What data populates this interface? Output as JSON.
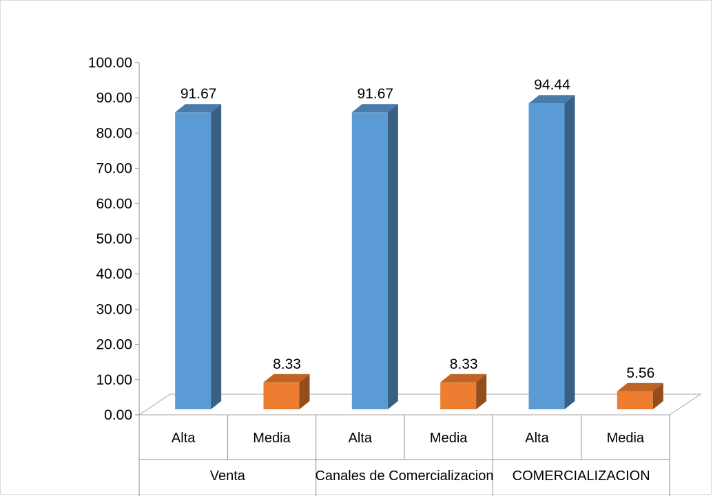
{
  "chart_data": {
    "type": "bar",
    "categories": [
      {
        "group": "Venta",
        "label": "Alta"
      },
      {
        "group": "Venta",
        "label": "Media"
      },
      {
        "group": "Canales de Comercializacion",
        "label": "Alta"
      },
      {
        "group": "Canales de Comercializacion",
        "label": "Media"
      },
      {
        "group": "COMERCIALIZACION",
        "label": "Alta"
      },
      {
        "group": "COMERCIALIZACION",
        "label": "Media"
      }
    ],
    "groups": [
      "Venta",
      "Canales de Comercializacion",
      "COMERCIALIZACION"
    ],
    "values": [
      91.67,
      8.33,
      91.67,
      8.33,
      94.44,
      5.56
    ],
    "value_labels": [
      "91.67",
      "8.33",
      "91.67",
      "8.33",
      "94.44",
      "5.56"
    ],
    "bar_colors": [
      "#5b9bd5",
      "#ed7d31",
      "#5b9bd5",
      "#ed7d31",
      "#5b9bd5",
      "#ed7d31"
    ],
    "yticks": [
      "0.00",
      "10.00",
      "20.00",
      "30.00",
      "40.00",
      "50.00",
      "60.00",
      "70.00",
      "80.00",
      "90.00",
      "100.00"
    ],
    "ylim": [
      0,
      100
    ],
    "grid": false,
    "style": "3d-column"
  }
}
